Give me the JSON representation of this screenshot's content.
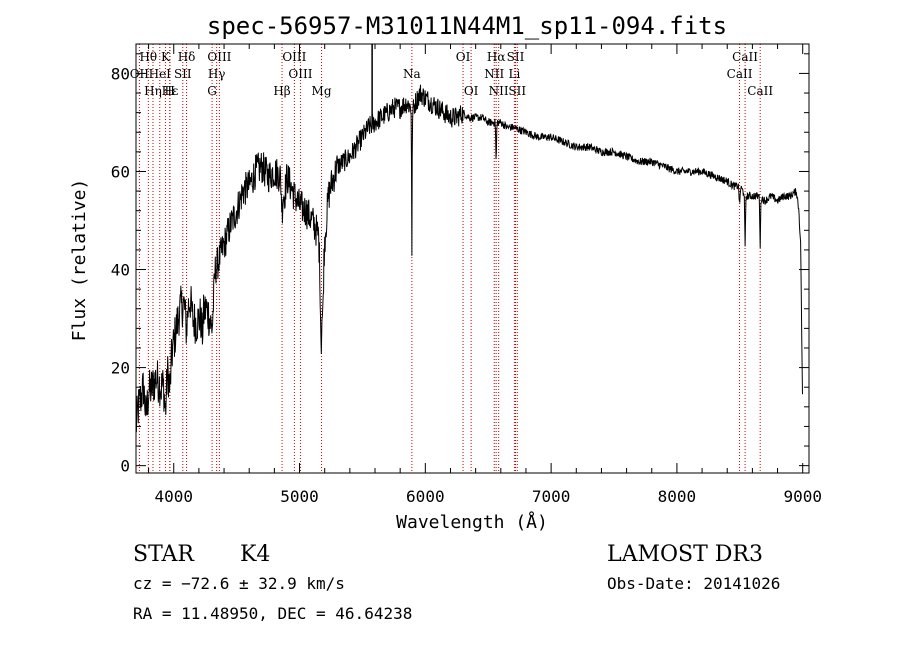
{
  "chart_data": {
    "type": "line",
    "title": "spec-56957-M31011N44M1_sp11-094.fits",
    "xlabel": "Wavelength (Å)",
    "ylabel": "Flux (relative)",
    "xlim": [
      3700,
      9050
    ],
    "ylim": [
      -1.5,
      86
    ],
    "xticks": [
      4000,
      5000,
      6000,
      7000,
      8000,
      9000
    ],
    "yticks": [
      0,
      20,
      40,
      60,
      80
    ],
    "anchors": [
      [
        3700,
        8
      ],
      [
        3720,
        12
      ],
      [
        3740,
        14
      ],
      [
        3760,
        16
      ],
      [
        3780,
        10
      ],
      [
        3800,
        15
      ],
      [
        3830,
        16
      ],
      [
        3860,
        18
      ],
      [
        3900,
        16
      ],
      [
        3930,
        17
      ],
      [
        3960,
        20
      ],
      [
        3980,
        22
      ],
      [
        4000,
        25
      ],
      [
        4020,
        28
      ],
      [
        4050,
        32
      ],
      [
        4080,
        33
      ],
      [
        4100,
        31
      ],
      [
        4130,
        34
      ],
      [
        4150,
        30
      ],
      [
        4180,
        29
      ],
      [
        4200,
        30
      ],
      [
        4230,
        31
      ],
      [
        4260,
        32
      ],
      [
        4290,
        30
      ],
      [
        4310,
        33
      ],
      [
        4330,
        40
      ],
      [
        4360,
        42
      ],
      [
        4400,
        45
      ],
      [
        4450,
        49
      ],
      [
        4500,
        52
      ],
      [
        4550,
        56
      ],
      [
        4600,
        57
      ],
      [
        4650,
        60
      ],
      [
        4700,
        61
      ],
      [
        4750,
        59
      ],
      [
        4800,
        60
      ],
      [
        4850,
        59
      ],
      [
        4880,
        55
      ],
      [
        4900,
        59
      ],
      [
        4930,
        57
      ],
      [
        4960,
        55
      ],
      [
        5000,
        53
      ],
      [
        5050,
        52
      ],
      [
        5100,
        50
      ],
      [
        5150,
        47
      ],
      [
        5170,
        40
      ],
      [
        5184,
        36
      ],
      [
        5200,
        46
      ],
      [
        5230,
        55
      ],
      [
        5260,
        58
      ],
      [
        5300,
        61
      ],
      [
        5350,
        62
      ],
      [
        5400,
        63
      ],
      [
        5450,
        65
      ],
      [
        5500,
        67
      ],
      [
        5550,
        69
      ],
      [
        5600,
        70
      ],
      [
        5650,
        71
      ],
      [
        5700,
        72
      ],
      [
        5750,
        73
      ],
      [
        5800,
        73
      ],
      [
        5850,
        74
      ],
      [
        5890,
        73
      ],
      [
        5895,
        72
      ],
      [
        5920,
        74
      ],
      [
        5960,
        76
      ],
      [
        6000,
        75
      ],
      [
        6050,
        74
      ],
      [
        6100,
        73
      ],
      [
        6150,
        72
      ],
      [
        6200,
        71
      ],
      [
        6250,
        71
      ],
      [
        6300,
        72
      ],
      [
        6350,
        71
      ],
      [
        6400,
        71
      ],
      [
        6450,
        71
      ],
      [
        6500,
        70
      ],
      [
        6550,
        70
      ],
      [
        6600,
        70
      ],
      [
        6650,
        69
      ],
      [
        6700,
        69
      ],
      [
        6800,
        68
      ],
      [
        6900,
        67
      ],
      [
        7000,
        67
      ],
      [
        7100,
        66
      ],
      [
        7200,
        65
      ],
      [
        7300,
        65
      ],
      [
        7400,
        64
      ],
      [
        7500,
        64
      ],
      [
        7600,
        63
      ],
      [
        7700,
        62
      ],
      [
        7800,
        62
      ],
      [
        7900,
        61
      ],
      [
        8000,
        60
      ],
      [
        8100,
        60
      ],
      [
        8200,
        60
      ],
      [
        8300,
        59
      ],
      [
        8400,
        58
      ],
      [
        8450,
        57
      ],
      [
        8500,
        57
      ],
      [
        8550,
        55
      ],
      [
        8600,
        55
      ],
      [
        8650,
        55
      ],
      [
        8700,
        54
      ],
      [
        8750,
        55
      ],
      [
        8800,
        54
      ],
      [
        8850,
        55
      ],
      [
        8900,
        55
      ],
      [
        8950,
        56
      ],
      [
        8970,
        52
      ],
      [
        8985,
        44
      ],
      [
        8995,
        20
      ],
      [
        9000,
        10
      ]
    ],
    "absorption": [
      {
        "wavelength": 3934,
        "depth": 6,
        "width": 10
      },
      {
        "wavelength": 3969,
        "depth": 5,
        "width": 10
      },
      {
        "wavelength": 4101,
        "depth": 3,
        "width": 10
      },
      {
        "wavelength": 4226,
        "depth": 4,
        "width": 8
      },
      {
        "wavelength": 4305,
        "depth": 4,
        "width": 12
      },
      {
        "wavelength": 4861,
        "depth": 5,
        "width": 8
      },
      {
        "wavelength": 5167,
        "depth": 6,
        "width": 8
      },
      {
        "wavelength": 5173,
        "depth": 10,
        "width": 6
      },
      {
        "wavelength": 5184,
        "depth": 6,
        "width": 6
      },
      {
        "wavelength": 5893,
        "depth": 30,
        "width": 3
      },
      {
        "wavelength": 6563,
        "depth": 8,
        "width": 4
      },
      {
        "wavelength": 8498,
        "depth": 4,
        "width": 5
      },
      {
        "wavelength": 8542,
        "depth": 11,
        "width": 4
      },
      {
        "wavelength": 8662,
        "depth": 10,
        "width": 4
      }
    ],
    "spike": {
      "wavelength": 5577,
      "y_max": 86
    },
    "noise": [
      {
        "from": 3700,
        "to": 4300,
        "amp": 4.5
      },
      {
        "from": 4300,
        "to": 5300,
        "amp": 3.5
      },
      {
        "from": 5300,
        "to": 6300,
        "amp": 2.2
      },
      {
        "from": 6300,
        "to": 9050,
        "amp": 0.8
      }
    ],
    "lines": [
      {
        "name": "Hθ",
        "wavelength": 3798,
        "row": 0
      },
      {
        "name": "K",
        "wavelength": 3934,
        "row": 0
      },
      {
        "name": "Hδ",
        "wavelength": 4102,
        "row": 0
      },
      {
        "name": "OIII",
        "wavelength": 4363,
        "row": 0
      },
      {
        "name": "OIII",
        "wavelength": 4959,
        "row": 0
      },
      {
        "name": "OI",
        "wavelength": 6300,
        "row": 0
      },
      {
        "name": "Hα",
        "wavelength": 6563,
        "row": 0
      },
      {
        "name": "SII",
        "wavelength": 6717,
        "row": 0
      },
      {
        "name": "CaII",
        "wavelength": 8542,
        "row": 0
      },
      {
        "name": "OII",
        "wavelength": 3727,
        "row": 1
      },
      {
        "name": "HeI",
        "wavelength": 3889,
        "row": 1
      },
      {
        "name": "SII",
        "wavelength": 4072,
        "row": 1
      },
      {
        "name": "Hγ",
        "wavelength": 4341,
        "row": 1
      },
      {
        "name": "OIII",
        "wavelength": 5007,
        "row": 1
      },
      {
        "name": "Na",
        "wavelength": 5893,
        "row": 1
      },
      {
        "name": "NII",
        "wavelength": 6548,
        "row": 1
      },
      {
        "name": "Li",
        "wavelength": 6708,
        "row": 1
      },
      {
        "name": "CaII",
        "wavelength": 8498,
        "row": 1
      },
      {
        "name": "Hε",
        "wavelength": 3970,
        "row": 2
      },
      {
        "name": "Hη",
        "wavelength": 3835,
        "row": 2
      },
      {
        "name": "H",
        "wavelength": 3968,
        "row": 2
      },
      {
        "name": "G",
        "wavelength": 4305,
        "row": 2
      },
      {
        "name": "Hβ",
        "wavelength": 4861,
        "row": 2
      },
      {
        "name": "Mg",
        "wavelength": 5175,
        "row": 2
      },
      {
        "name": "OI",
        "wavelength": 6364,
        "row": 2
      },
      {
        "name": "NII",
        "wavelength": 6583,
        "row": 2
      },
      {
        "name": "SII",
        "wavelength": 6731,
        "row": 2
      },
      {
        "name": "CaII",
        "wavelength": 8662,
        "row": 2
      }
    ]
  },
  "info": {
    "class_label": "STAR",
    "subclass_label": "K4",
    "survey_label": "LAMOST DR3",
    "cz_text": "cz = −72.6 ± 32.9 km/s",
    "obs_date_text": "Obs-Date: 20141026",
    "radec_text": "RA =  11.48950, DEC =  46.64238"
  },
  "colors": {
    "axis": "#000000",
    "spectrum": "#000000",
    "line_markers": "#cc0000"
  }
}
